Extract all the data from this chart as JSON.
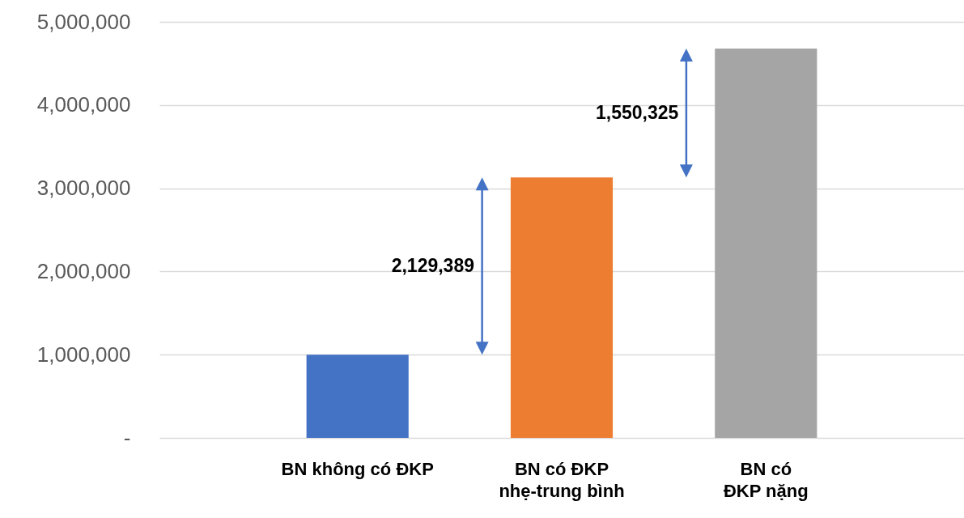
{
  "chart_data": {
    "type": "bar",
    "categories": [
      "BN không có ĐKP",
      "BN có ĐKP\nnhẹ-trung bình",
      "BN có\nĐKP nặng"
    ],
    "values": [
      1000000,
      3130000,
      4680000
    ],
    "colors": [
      "#4472c4",
      "#ed7d31",
      "#a5a5a5"
    ],
    "ylim": [
      0,
      5000000
    ],
    "yticks": [
      {
        "value": 0,
        "label": "-"
      },
      {
        "value": 1000000,
        "label": "1,000,000"
      },
      {
        "value": 2000000,
        "label": "2,000,000"
      },
      {
        "value": 3000000,
        "label": "3,000,000"
      },
      {
        "value": 4000000,
        "label": "4,000,000"
      },
      {
        "value": 5000000,
        "label": "5,000,000"
      }
    ],
    "grid": "y",
    "annotations": [
      "2,129,389",
      "1,550,325"
    ]
  }
}
